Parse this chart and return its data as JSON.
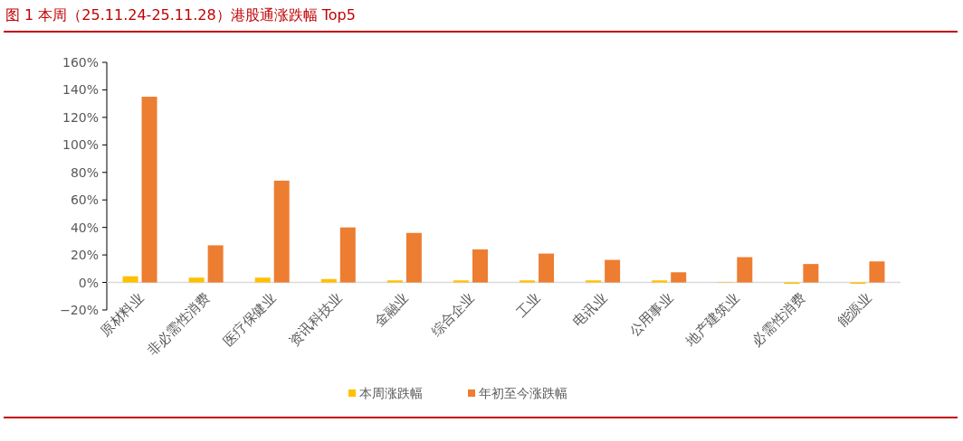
{
  "chart_data": {
    "type": "bar",
    "title": "图 1   本周（25.11.24-25.11.28）港股通涨跌幅 Top5",
    "categories": [
      "原材料业",
      "非必需性消费",
      "医疗保健业",
      "资讯科技业",
      "金融业",
      "综合企业",
      "工业",
      "电讯业",
      "公用事业",
      "地产建筑业",
      "必需性消费",
      "能源业"
    ],
    "series": [
      {
        "name": "本周涨跌幅",
        "color": "#ffc000",
        "values": [
          4.5,
          3.5,
          3.5,
          2.5,
          1.5,
          1.5,
          1.5,
          1.5,
          1.5,
          0.3,
          -1,
          -1
        ]
      },
      {
        "name": "年初至今涨跌幅",
        "color": "#ed7d31",
        "values": [
          135,
          27,
          74,
          40,
          36,
          24,
          21,
          16.4,
          7.4,
          18.4,
          13.4,
          15.3
        ]
      }
    ],
    "ylim": [
      -20,
      160
    ],
    "yticks": [
      {
        "value": -20,
        "label": "−20%"
      },
      {
        "value": 0,
        "label": "0%"
      },
      {
        "value": 20,
        "label": "20%"
      },
      {
        "value": 40,
        "label": "40%"
      },
      {
        "value": 60,
        "label": "60%"
      },
      {
        "value": 80,
        "label": "80%"
      },
      {
        "value": 100,
        "label": "100%"
      },
      {
        "value": 120,
        "label": "120%"
      },
      {
        "value": 140,
        "label": "140%"
      },
      {
        "value": 160,
        "label": "160%"
      }
    ],
    "grid": false,
    "legend": "bottom"
  }
}
